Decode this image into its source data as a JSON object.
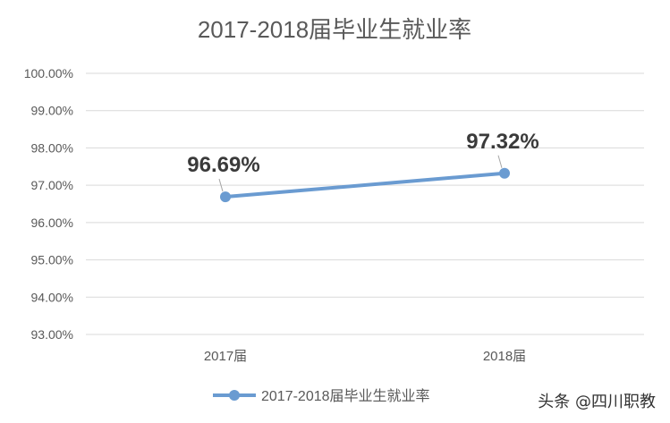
{
  "chart_data": {
    "type": "line",
    "title": "2017-2018届毕业生就业率",
    "categories": [
      "2017届",
      "2018届"
    ],
    "series": [
      {
        "name": "2017-2018届毕业生就业率",
        "values": [
          96.69,
          97.32
        ],
        "labels": [
          "96.69%",
          "97.32%"
        ]
      }
    ],
    "ylim": [
      93,
      100
    ],
    "yticks": [
      "93.00%",
      "94.00%",
      "95.00%",
      "96.00%",
      "97.00%",
      "98.00%",
      "99.00%",
      "100.00%"
    ],
    "grid": true,
    "legend": "bottom",
    "line_color": "#6a9bd1"
  },
  "watermark": "头条 @四川职教"
}
